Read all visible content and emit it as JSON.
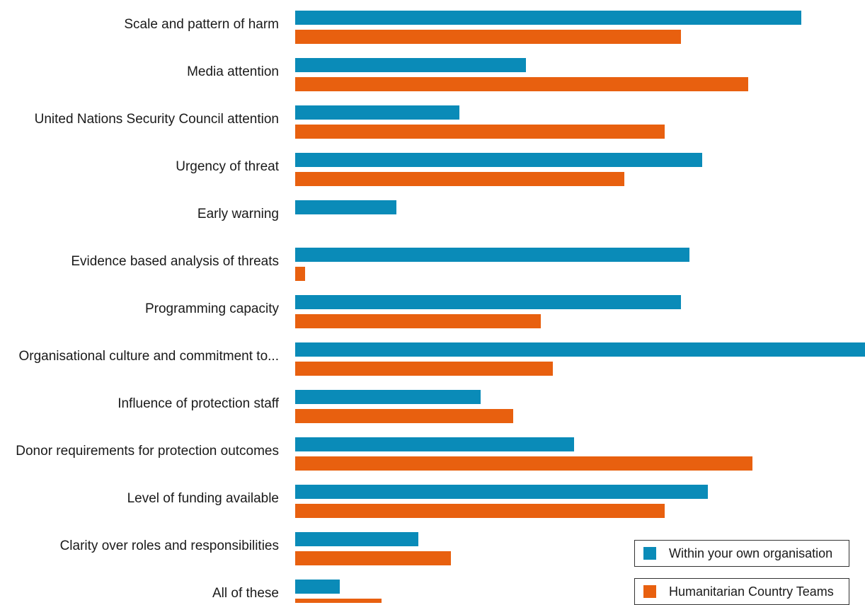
{
  "chart_data": {
    "type": "bar",
    "orientation": "horizontal",
    "categories": [
      "Scale and pattern of harm",
      "Media attention",
      "United Nations Security Council attention",
      "Urgency of threat",
      "Early warning",
      "Evidence based analysis of threats",
      "Programming capacity",
      "Organisational culture and commitment to...",
      "Influence of protection staff",
      "Donor requirements for protection outcomes",
      "Level of funding available",
      "Clarity over roles and responsibilities",
      "All of these"
    ],
    "series": [
      {
        "name": "Within your own organisation",
        "color": "#0a8bb8",
        "values": [
          715,
          326,
          232,
          575,
          143,
          557,
          545,
          805,
          262,
          394,
          583,
          174,
          63
        ]
      },
      {
        "name": "Humanitarian Country Teams",
        "color": "#e8600f",
        "values": [
          545,
          640,
          522,
          465,
          0,
          14,
          347,
          364,
          308,
          646,
          522,
          220,
          122
        ]
      }
    ],
    "xlim": [
      0,
      805
    ],
    "grid": false,
    "axes_visible": false,
    "legend_position": "bottom-right"
  },
  "legend": {
    "items": [
      {
        "label": "Within your own organisation",
        "color": "#0a8bb8"
      },
      {
        "label": "Humanitarian Country Teams",
        "color": "#e8600f"
      }
    ]
  }
}
